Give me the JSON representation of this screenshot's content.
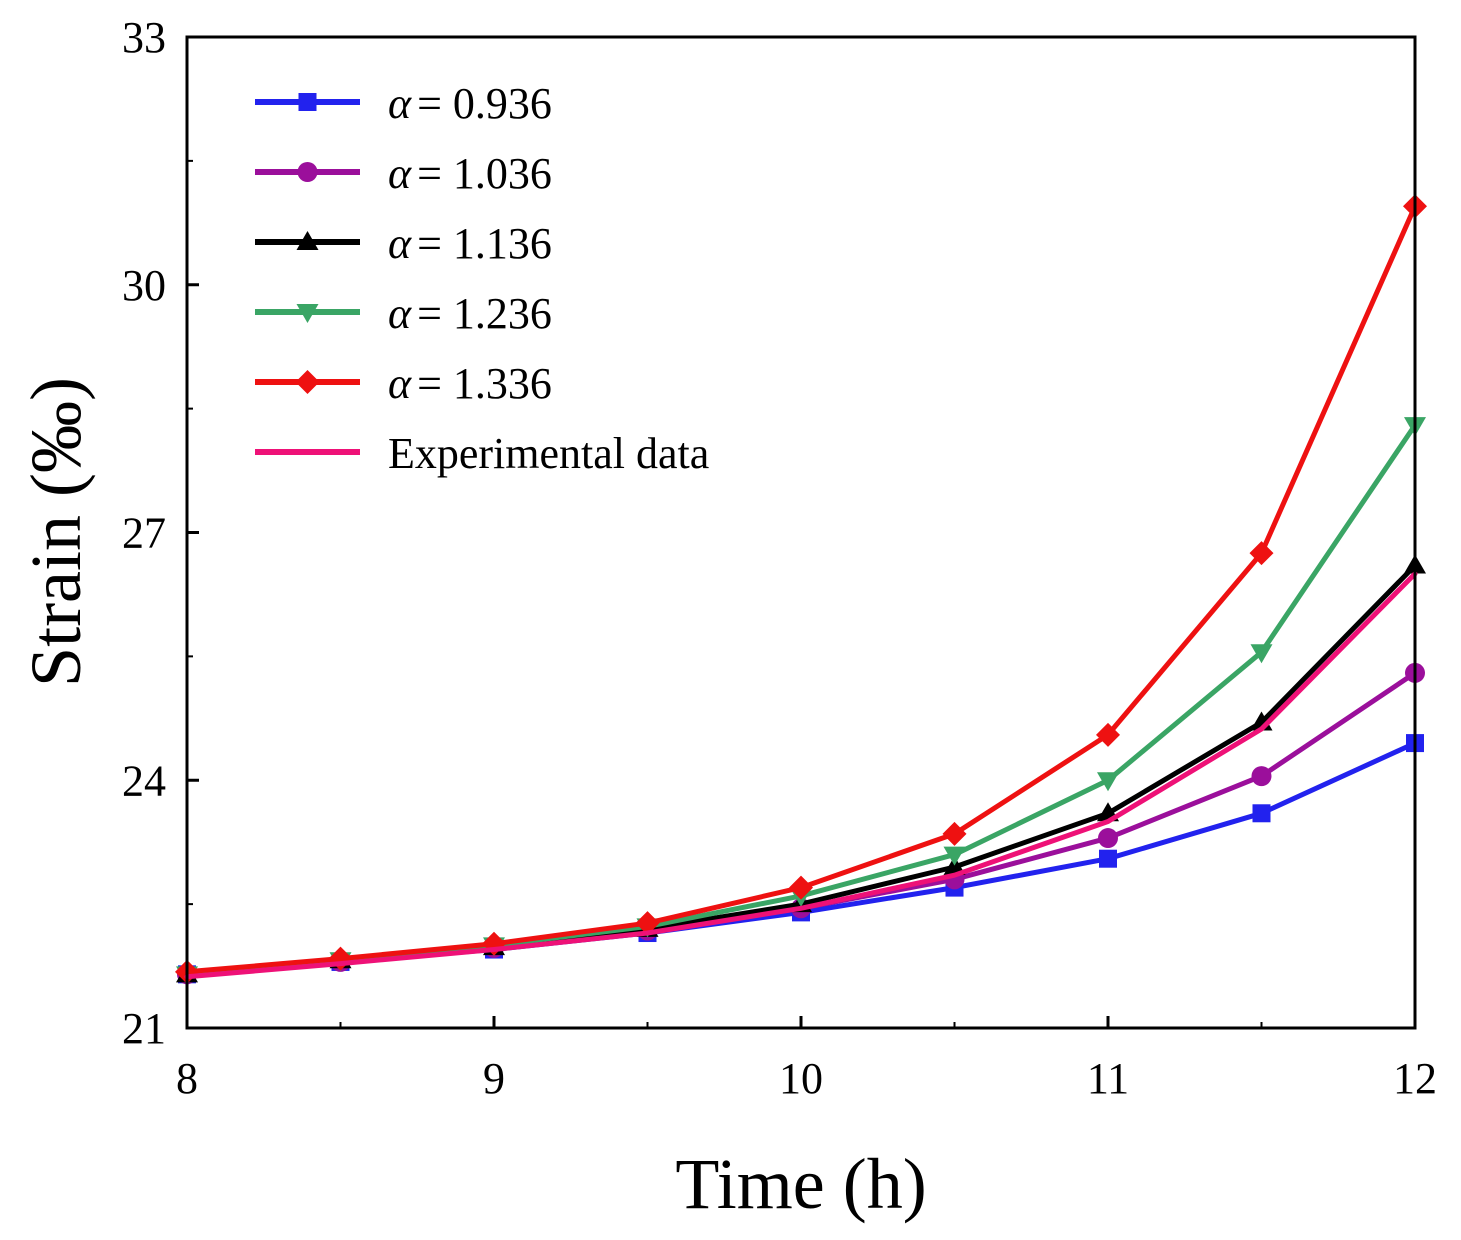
{
  "chart_data": {
    "type": "line",
    "xlabel": "Time (h)",
    "ylabel": "Strain (‰)",
    "xlim": [
      8,
      12
    ],
    "ylim": [
      21,
      33
    ],
    "xticks": [
      "8",
      "9",
      "10",
      "11",
      "12"
    ],
    "yticks": [
      "21",
      "24",
      "27",
      "30",
      "33"
    ],
    "grid": false,
    "legend_position": "top-left",
    "x": [
      8,
      8.5,
      9,
      9.5,
      10,
      10.5,
      11,
      11.5,
      12
    ],
    "series": [
      {
        "name": "α = 0.936",
        "symbol": "α",
        "value_text": "= 0.936",
        "color": "#2222ee",
        "marker": "square",
        "values": [
          21.65,
          21.8,
          21.95,
          22.15,
          22.4,
          22.7,
          23.05,
          23.6,
          24.45
        ]
      },
      {
        "name": "α = 1.036",
        "symbol": "α",
        "value_text": "= 1.036",
        "color": "#9b0f9b",
        "marker": "circle",
        "values": [
          21.65,
          21.8,
          21.97,
          22.18,
          22.45,
          22.8,
          23.3,
          24.05,
          25.3
        ]
      },
      {
        "name": "α = 1.136",
        "symbol": "α",
        "value_text": "= 1.136",
        "color": "#000000",
        "marker": "triangle-up",
        "values": [
          21.65,
          21.82,
          21.98,
          22.2,
          22.5,
          22.95,
          23.6,
          24.7,
          26.6
        ]
      },
      {
        "name": "α = 1.236",
        "symbol": "α",
        "value_text": "= 1.236",
        "color": "#3aa565",
        "marker": "triangle-down",
        "values": [
          21.65,
          21.82,
          22.0,
          22.23,
          22.6,
          23.1,
          24.0,
          25.55,
          28.3
        ]
      },
      {
        "name": "α = 1.336",
        "symbol": "α",
        "value_text": "= 1.336",
        "color": "#ee1111",
        "marker": "diamond",
        "values": [
          21.68,
          21.84,
          22.02,
          22.27,
          22.7,
          23.35,
          24.55,
          26.75,
          30.95
        ]
      },
      {
        "name": "Experimental data",
        "symbol": "",
        "value_text": "Experimental data",
        "color": "#ee1177",
        "marker": "none",
        "values": [
          21.62,
          21.78,
          21.95,
          22.15,
          22.45,
          22.85,
          23.5,
          24.62,
          26.5
        ]
      }
    ]
  }
}
